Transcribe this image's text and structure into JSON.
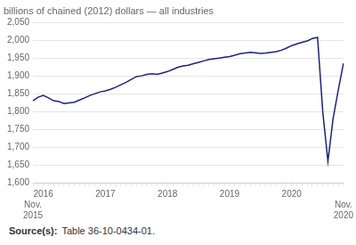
{
  "chart_data": {
    "type": "line",
    "title": "billions of chained (2012) dollars — all industries",
    "categories": [
      "Nov.\n2015",
      null,
      "2016",
      null,
      null,
      null,
      null,
      null,
      null,
      null,
      null,
      null,
      null,
      null,
      "2017",
      null,
      null,
      null,
      null,
      null,
      null,
      null,
      null,
      null,
      null,
      null,
      "2018",
      null,
      null,
      null,
      null,
      null,
      null,
      null,
      null,
      null,
      null,
      null,
      "2019",
      null,
      null,
      null,
      null,
      null,
      null,
      null,
      null,
      null,
      null,
      null,
      "2020",
      null,
      null,
      null,
      null,
      null,
      null,
      null,
      null,
      null,
      "Nov.\n2020"
    ],
    "values": [
      1830,
      1840,
      1845,
      1838,
      1830,
      1828,
      1822,
      1824,
      1826,
      1832,
      1838,
      1845,
      1850,
      1855,
      1858,
      1862,
      1868,
      1875,
      1882,
      1890,
      1898,
      1900,
      1904,
      1906,
      1904,
      1908,
      1912,
      1918,
      1924,
      1928,
      1930,
      1934,
      1938,
      1942,
      1946,
      1948,
      1950,
      1952,
      1954,
      1958,
      1962,
      1964,
      1966,
      1965,
      1963,
      1964,
      1966,
      1968,
      1972,
      1978,
      1985,
      1990,
      1994,
      1998,
      2005,
      2008,
      1800,
      1660,
      1780,
      1860,
      1935
    ],
    "color": "#1a237e",
    "ylim": [
      1600,
      2050
    ],
    "yticks": [
      {
        "value": 1600,
        "label": "1,600"
      },
      {
        "value": 1650,
        "label": "1,650"
      },
      {
        "value": 1700,
        "label": "1,700"
      },
      {
        "value": 1750,
        "label": "1,750"
      },
      {
        "value": 1800,
        "label": "1,800"
      },
      {
        "value": 1850,
        "label": "1,850"
      },
      {
        "value": 1900,
        "label": "1,900"
      },
      {
        "value": 1950,
        "label": "1,950"
      },
      {
        "value": 2000,
        "label": "2,000"
      },
      {
        "value": 2050,
        "label": "2,050"
      }
    ],
    "grid": true,
    "annotations": [
      "Source(s):",
      "Table 36-10-0434-01."
    ]
  }
}
